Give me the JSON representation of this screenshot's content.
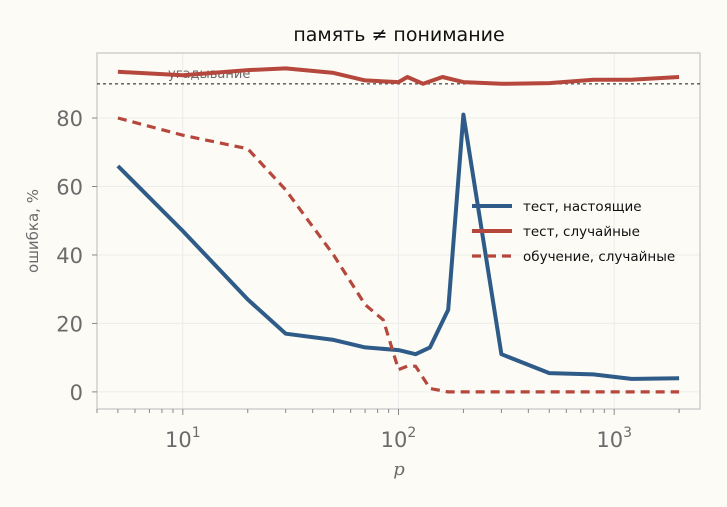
{
  "chart_data": {
    "type": "line",
    "title": "память ≠ понимание",
    "xlabel": "p",
    "ylabel": "ошибка, %",
    "x_scale": "log",
    "xlim": [
      4,
      2500
    ],
    "ylim": [
      -5,
      99
    ],
    "yticks": [
      0,
      20,
      40,
      60,
      80
    ],
    "xticks": [
      {
        "value": 10,
        "base": "10",
        "exp": "1"
      },
      {
        "value": 100,
        "base": "10",
        "exp": "2"
      },
      {
        "value": 1000,
        "base": "10",
        "exp": "3"
      }
    ],
    "grid": true,
    "legend_position": "right",
    "reference_line": {
      "y": 90,
      "label": "угадывание",
      "color": "#555555"
    },
    "series": [
      {
        "name": "тест, настоящие",
        "color": "#2e5b87",
        "style": "solid",
        "x": [
          5,
          10,
          20,
          30,
          50,
          70,
          100,
          120,
          140,
          170,
          200,
          300,
          500,
          800,
          1200,
          2000
        ],
        "y": [
          66,
          47,
          27,
          17,
          15.2,
          13,
          12.2,
          11,
          13,
          24,
          81,
          11,
          5.5,
          5.1,
          3.8,
          4
        ]
      },
      {
        "name": "тест, случайные",
        "color": "#b5473c",
        "style": "solid",
        "x": [
          5,
          10,
          20,
          30,
          50,
          70,
          100,
          110,
          130,
          160,
          200,
          300,
          500,
          800,
          1200,
          2000
        ],
        "y": [
          93.5,
          92.5,
          94,
          94.5,
          93.2,
          91,
          90.5,
          92,
          90,
          92,
          90.5,
          90,
          90.2,
          91.2,
          91.2,
          92
        ]
      },
      {
        "name": "обучение, случайные",
        "color": "#b5473c",
        "style": "dashed",
        "x": [
          5,
          10,
          20,
          30,
          50,
          70,
          85,
          100,
          110,
          120,
          140,
          170,
          200,
          300,
          500,
          1000,
          2000
        ],
        "y": [
          80,
          75,
          71,
          59,
          40,
          25.5,
          21,
          6.5,
          7.5,
          7.5,
          1,
          0,
          0,
          0,
          0,
          0,
          0
        ]
      }
    ]
  }
}
